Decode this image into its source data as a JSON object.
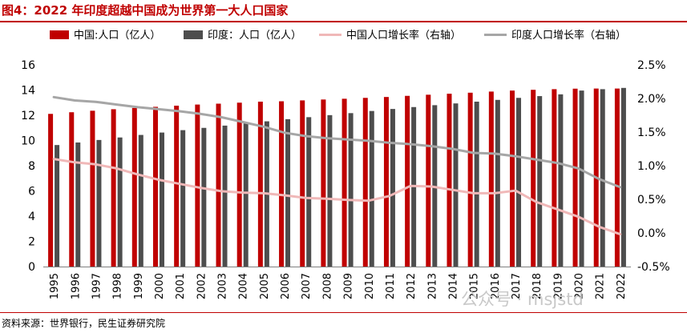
{
  "title": "图4：2022 年印度超越中国成为世界第一大人口国家",
  "source": "资料来源：世界银行，民生证券研究院",
  "watermark": "公众号 · msjstd",
  "colors": {
    "china_bar": "#c00000",
    "india_bar": "#4d4d4d",
    "china_growth": "#f0b8b8",
    "india_growth": "#a6a6a6",
    "accent": "#c00000"
  },
  "chart_data": {
    "type": "bar",
    "categories": [
      "1995",
      "1996",
      "1997",
      "1998",
      "1999",
      "2000",
      "2001",
      "2002",
      "2003",
      "2004",
      "2005",
      "2006",
      "2007",
      "2008",
      "2009",
      "2010",
      "2011",
      "2012",
      "2013",
      "2014",
      "2015",
      "2016",
      "2017",
      "2018",
      "2019",
      "2020",
      "2021",
      "2022"
    ],
    "series": [
      {
        "name": "中国:人口（亿人）",
        "type": "bar",
        "axis": "left",
        "values": [
          12.11,
          12.24,
          12.36,
          12.48,
          12.58,
          12.67,
          12.76,
          12.85,
          12.92,
          13.0,
          13.08,
          13.11,
          13.18,
          13.25,
          13.31,
          13.38,
          13.45,
          13.54,
          13.63,
          13.71,
          13.79,
          13.88,
          13.96,
          14.02,
          14.07,
          14.11,
          14.12,
          14.12
        ]
      },
      {
        "name": "印度：人口（亿人）",
        "type": "bar",
        "axis": "left",
        "values": [
          9.64,
          9.84,
          10.04,
          10.24,
          10.44,
          10.63,
          10.82,
          11.0,
          11.18,
          11.35,
          11.52,
          11.69,
          11.85,
          12.01,
          12.17,
          12.34,
          12.5,
          12.65,
          12.8,
          12.94,
          13.08,
          13.22,
          13.38,
          13.52,
          13.66,
          13.96,
          14.07,
          14.17
        ]
      },
      {
        "name": "中国人口增长率（右轴）",
        "type": "line",
        "axis": "right",
        "values": [
          1.1,
          1.05,
          1.02,
          0.96,
          0.87,
          0.79,
          0.73,
          0.67,
          0.62,
          0.6,
          0.59,
          0.56,
          0.52,
          0.51,
          0.49,
          0.48,
          0.55,
          0.7,
          0.69,
          0.64,
          0.59,
          0.59,
          0.63,
          0.46,
          0.35,
          0.24,
          0.09,
          -0.02
        ]
      },
      {
        "name": "印度人口增长率（右轴）",
        "type": "line",
        "axis": "right",
        "values": [
          2.02,
          1.97,
          1.95,
          1.91,
          1.87,
          1.84,
          1.81,
          1.77,
          1.72,
          1.65,
          1.58,
          1.49,
          1.44,
          1.41,
          1.39,
          1.37,
          1.34,
          1.32,
          1.29,
          1.25,
          1.19,
          1.18,
          1.14,
          1.09,
          1.04,
          0.96,
          0.8,
          0.68
        ]
      }
    ],
    "left_axis": {
      "min": 0,
      "max": 16,
      "ticks": [
        "0",
        "2",
        "4",
        "6",
        "8",
        "10",
        "12",
        "14",
        "16"
      ]
    },
    "right_axis": {
      "min": -0.5,
      "max": 2.5,
      "ticks": [
        "-0.5%",
        "0.0%",
        "0.5%",
        "1.0%",
        "1.5%",
        "2.0%",
        "2.5%"
      ]
    },
    "legend_position": "top",
    "grid": false
  }
}
